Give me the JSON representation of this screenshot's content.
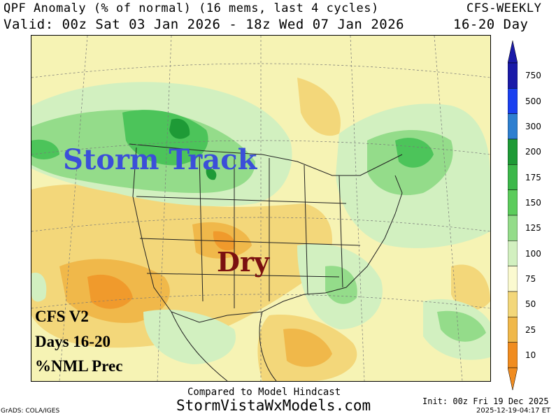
{
  "header": {
    "title_line": "QPF Anomaly (% of normal) (16 mems, last 4 cycles)",
    "model": "CFS-WEEKLY",
    "valid_line": "Valid: 00z Sat 03 Jan 2026 - 18z Wed 07 Jan 2026",
    "range": "16-20 Day"
  },
  "map": {
    "annotations": {
      "storm_track": "Storm Track",
      "dry": "Dry"
    },
    "info_block": [
      "CFS V2",
      "Days 16-20",
      "%NML Prec"
    ],
    "colors": {
      "background": "#f6f3b4",
      "dry_light": "#f3d77a",
      "dry_mid": "#f0b84a",
      "dry_strong": "#f09a2c",
      "wet_light": "#d2f0c0",
      "wet_mid": "#94dc8a",
      "wet_strong": "#4cc45a",
      "wet_max": "#1e9a36"
    }
  },
  "colorbar": {
    "labels": [
      "750",
      "500",
      "300",
      "200",
      "175",
      "150",
      "125",
      "100",
      "75",
      "50",
      "25",
      "10"
    ],
    "colors": [
      "#1a1aa8",
      "#1a40f0",
      "#2e7fd0",
      "#1e9a36",
      "#3cb84a",
      "#5ccc5c",
      "#94dc8a",
      "#d2f0c0",
      "#fbfad0",
      "#f3d77a",
      "#f0b84a",
      "#f08c20"
    ]
  },
  "footer": {
    "compared": "Compared to Model Hindcast",
    "site": "StormVistaWxModels.com",
    "grads": "GrADS: COLA/IGES",
    "init": "Init: 00z Fri 19 Dec 2025",
    "stamp": "2025-12-19-04:17 ET"
  }
}
